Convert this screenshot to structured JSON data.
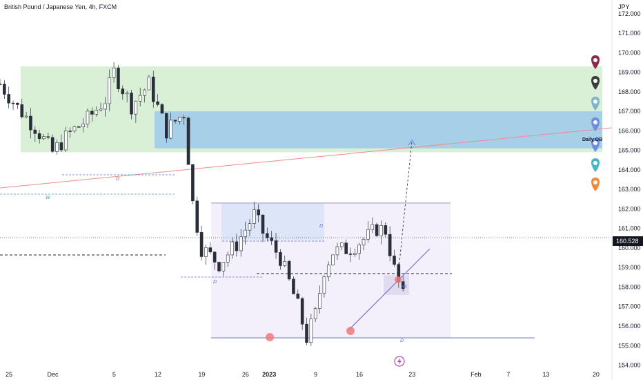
{
  "header": {
    "symbol_title": "British Pound / Japanese Yen, 4h, FXCM"
  },
  "price_scale": {
    "currency": "JPY",
    "current_price": "160.528"
  },
  "chart_data": {
    "type": "candlestick",
    "title": "British Pound / Japanese Yen, 4h, FXCM",
    "y_unit": "JPY",
    "y_ticks": [
      "172.000",
      "171.000",
      "170.000",
      "169.000",
      "168.000",
      "167.000",
      "166.000",
      "165.000",
      "164.000",
      "163.000",
      "162.000",
      "161.000",
      "160.000",
      "159.000",
      "158.000",
      "157.000",
      "156.000",
      "155.000",
      "154.000"
    ],
    "x_ticks": [
      "25",
      "Dec",
      "5",
      "12",
      "19",
      "26",
      "2023",
      "9",
      "16",
      "23",
      "Feb",
      "7",
      "13",
      "20"
    ],
    "ylim": [
      153.7,
      172.7
    ],
    "current_price": 160.528,
    "close_path": [
      {
        "d": 0,
        "close": 168.4
      },
      {
        "d": 2,
        "close": 167.2
      },
      {
        "d": 4,
        "close": 166.2
      },
      {
        "d": 6,
        "close": 164.9
      },
      {
        "d": 8,
        "close": 165.9
      },
      {
        "d": 10,
        "close": 166.6
      },
      {
        "d": 12,
        "close": 167.6
      },
      {
        "d": 13,
        "close": 169.0
      },
      {
        "d": 15,
        "close": 167.3
      },
      {
        "d": 17,
        "close": 168.4
      },
      {
        "d": 19,
        "close": 166.0
      },
      {
        "d": 20,
        "close": 166.5
      },
      {
        "d": 21,
        "close": 166.9
      },
      {
        "d": 22,
        "close": 162.3
      },
      {
        "d": 23,
        "close": 160.0
      },
      {
        "d": 25,
        "close": 159.2
      },
      {
        "d": 27,
        "close": 160.2
      },
      {
        "d": 29,
        "close": 161.7
      },
      {
        "d": 30,
        "close": 160.8
      },
      {
        "d": 32,
        "close": 159.5
      },
      {
        "d": 34,
        "close": 157.0
      },
      {
        "d": 35,
        "close": 155.4
      },
      {
        "d": 36,
        "close": 156.6
      },
      {
        "d": 37,
        "close": 158.9
      },
      {
        "d": 38,
        "close": 159.8
      },
      {
        "d": 40,
        "close": 160.0
      },
      {
        "d": 42,
        "close": 160.6
      },
      {
        "d": 43,
        "close": 161.0
      },
      {
        "d": 44,
        "close": 160.9
      },
      {
        "d": 45,
        "close": 158.9
      },
      {
        "d": 46,
        "close": 157.5
      },
      {
        "d": 47,
        "close": 156.0
      },
      {
        "d": 48,
        "close": 156.8
      },
      {
        "d": 50,
        "close": 157.2
      },
      {
        "d": 51,
        "close": 158.9
      },
      {
        "d": 52,
        "close": 157.9
      },
      {
        "d": 53,
        "close": 160.8
      },
      {
        "d": 54,
        "close": 157.8
      },
      {
        "d": 55,
        "close": 159.4
      },
      {
        "d": 56,
        "close": 160.6
      }
    ],
    "zones": [
      {
        "top": 169.3,
        "bottom": 164.9,
        "color": "#d9f0d6"
      },
      {
        "top": 167.0,
        "bottom": 165.1,
        "color": "#a8cfe8"
      },
      {
        "top": 162.3,
        "bottom": 155.4,
        "color": "#f3effb"
      },
      {
        "top": 162.3,
        "bottom": 160.4,
        "color": "#dde6f8"
      },
      {
        "top": 158.6,
        "bottom": 157.6,
        "color": "#e0dcf0"
      }
    ],
    "annotations": {
      "daily_ob": "Daily OB",
      "h4": "H4",
      "d": "D",
      "w": "W"
    },
    "colors": {
      "up": "#089981",
      "down": "#f23645",
      "candle_ink": "#2a2e39",
      "green_zone": "#d9f0d6",
      "blue_zone": "#a8cfe8",
      "range_box": "#f3effb",
      "trendline": "#f28a8a",
      "marker_red": "#f07a7a"
    }
  },
  "markers": [
    {
      "icon": "map-pin-icon",
      "color": "#8b2a4d"
    },
    {
      "icon": "map-pin-icon",
      "color": "#3b3b3b"
    },
    {
      "icon": "map-pin-icon",
      "color": "#7fb3c7"
    },
    {
      "icon": "map-pin-icon",
      "color": "#6f8ee0"
    },
    {
      "icon": "map-pin-icon",
      "color": "#6f8ee0"
    },
    {
      "icon": "map-pin-icon",
      "color": "#4bb5c6"
    },
    {
      "icon": "map-pin-icon",
      "color": "#f08a3a"
    }
  ]
}
